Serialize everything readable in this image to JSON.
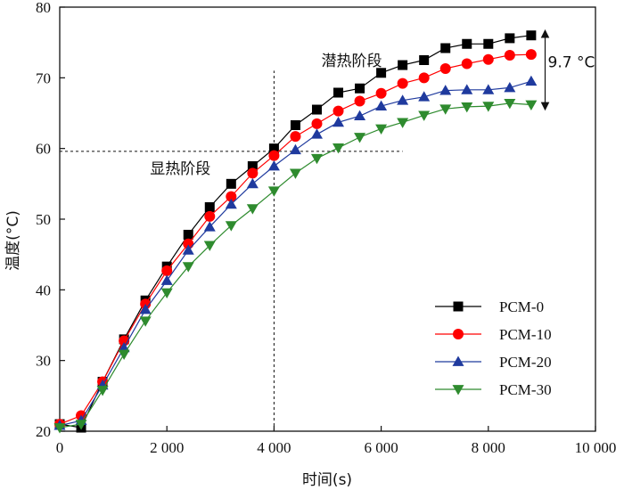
{
  "chart_data": {
    "type": "line",
    "xlabel": "时间(s)",
    "ylabel": "温度(°C)",
    "xlim": [
      0,
      10000
    ],
    "ylim": [
      20,
      80
    ],
    "x_ticks": [
      0,
      2000,
      4000,
      6000,
      8000,
      10000
    ],
    "x_tick_labels": [
      "0",
      "2 000",
      "4 000",
      "6 000",
      "8 000",
      "10 000"
    ],
    "y_ticks": [
      20,
      30,
      40,
      50,
      60,
      70,
      80
    ],
    "y_tick_labels": [
      "20",
      "30",
      "40",
      "50",
      "60",
      "70",
      "80"
    ],
    "grid": false,
    "legend_position": "bottom-right",
    "x": [
      0,
      400,
      800,
      1200,
      1600,
      2000,
      2400,
      2800,
      3200,
      3600,
      4000,
      4400,
      4800,
      5200,
      5600,
      6000,
      6400,
      6800,
      7200,
      7600,
      8000,
      8400,
      8800
    ],
    "series": [
      {
        "name": "PCM-0",
        "color": "#000000",
        "marker": "square",
        "values": [
          21.0,
          20.5,
          27.0,
          33.0,
          38.5,
          43.3,
          47.8,
          51.7,
          55.0,
          57.5,
          60.0,
          63.3,
          65.5,
          67.9,
          68.5,
          70.7,
          71.8,
          72.5,
          74.2,
          74.8,
          74.8,
          75.6,
          76.0
        ]
      },
      {
        "name": "PCM-10",
        "color": "#ff0000",
        "marker": "circle",
        "values": [
          21.0,
          22.2,
          27.0,
          32.8,
          38.0,
          42.7,
          46.5,
          50.4,
          53.2,
          56.5,
          59.0,
          61.7,
          63.5,
          65.3,
          66.7,
          67.8,
          69.2,
          70.0,
          71.3,
          72.0,
          72.6,
          73.2,
          73.3
        ]
      },
      {
        "name": "PCM-20",
        "color": "#1f3a9e",
        "marker": "triangle-up",
        "values": [
          20.8,
          21.5,
          26.5,
          31.8,
          37.2,
          41.3,
          45.6,
          48.9,
          52.1,
          55.0,
          57.5,
          59.8,
          62.0,
          63.7,
          64.6,
          66.0,
          66.8,
          67.3,
          68.2,
          68.3,
          68.3,
          68.6,
          69.5
        ]
      },
      {
        "name": "PCM-30",
        "color": "#2e8b2e",
        "marker": "triangle-down",
        "values": [
          20.5,
          21.0,
          25.8,
          30.9,
          35.6,
          39.6,
          43.3,
          46.3,
          49.1,
          51.5,
          54.0,
          56.5,
          58.6,
          60.1,
          61.6,
          62.8,
          63.7,
          64.7,
          65.6,
          65.9,
          66.0,
          66.4,
          66.2
        ]
      }
    ],
    "reference_lines": [
      {
        "orientation": "vertical",
        "x": 4000,
        "y_from": 20,
        "y_to": 71,
        "style": "dashed"
      },
      {
        "orientation": "horizontal",
        "y": 59.6,
        "x_from": 0,
        "x_to": 6400,
        "style": "dashed"
      }
    ],
    "annotations": [
      {
        "text": "潜热阶段",
        "x": 5450,
        "y": 71.7
      },
      {
        "text": "显热阶段",
        "x": 2250,
        "y": 56.4
      },
      {
        "text": "9.7 °C",
        "x": 9550,
        "y": 71.5
      }
    ],
    "difference_arrow": {
      "x": 9060,
      "y_from": 66.2,
      "y_to": 76.0
    }
  }
}
